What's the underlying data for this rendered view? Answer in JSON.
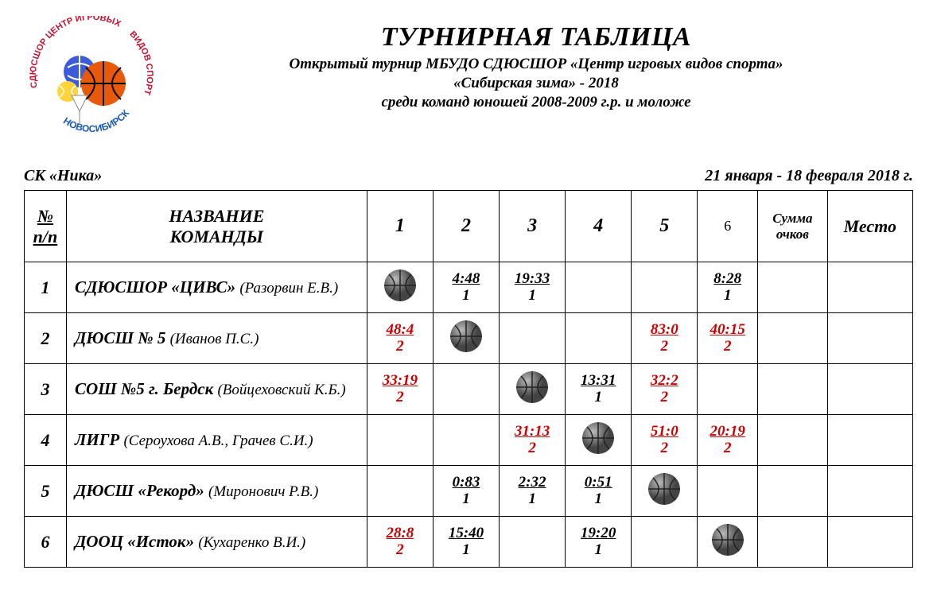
{
  "logo": {
    "arc_top": "СДЮСШОР ЦЕНТР ИГРОВЫХ",
    "arc_side": "ВИДОВ СПОРТА",
    "city": "НОВОСИБИРСК",
    "arc_color": "#c8102e",
    "city_color": "#1a5bb5"
  },
  "header": {
    "title": "ТУРНИРНАЯ ТАБЛИЦА",
    "line1": "Открытый турнир МБУДО СДЮСШОР «Центр игровых видов спорта»",
    "line2": "«Сибирская зима» - 2018",
    "line3": "среди команд юношей 2008-2009 г.р. и моложе"
  },
  "meta": {
    "venue": "СК «Ника»",
    "dates": "21 января - 18 февраля 2018 г."
  },
  "columns": {
    "num_top": "№",
    "num_bot": "п/п",
    "name_top": "НАЗВАНИЕ",
    "name_bot": "КОМАНДЫ",
    "r1": "1",
    "r2": "2",
    "r3": "3",
    "r4": "4",
    "r5": "5",
    "r6": "6",
    "sum_top": "Сумма",
    "sum_bot": "очков",
    "place": "Место"
  },
  "teams": [
    {
      "num": "1",
      "name": "СДЮСШОР «ЦИВС»",
      "coach": "(Разорвин Е.В.)",
      "cells": [
        {
          "diag": true
        },
        {
          "score": "4:48",
          "pts": "1",
          "win": false
        },
        {
          "score": "19:33",
          "pts": "1",
          "win": false
        },
        {},
        {},
        {
          "score": "8:28",
          "pts": "1",
          "win": false
        }
      ]
    },
    {
      "num": "2",
      "name": "ДЮСШ № 5",
      "coach": "(Иванов П.С.)",
      "cells": [
        {
          "score": "48:4",
          "pts": "2",
          "win": true
        },
        {
          "diag": true
        },
        {},
        {},
        {
          "score": "83:0",
          "pts": "2",
          "win": true
        },
        {
          "score": "40:15",
          "pts": "2",
          "win": true
        }
      ]
    },
    {
      "num": "3",
      "name": "СОШ №5 г. Бердск",
      "coach": "(Войцеховский К.Б.)",
      "cells": [
        {
          "score": "33:19",
          "pts": "2",
          "win": true
        },
        {},
        {
          "diag": true
        },
        {
          "score": "13:31",
          "pts": "1",
          "win": false
        },
        {
          "score": "32:2",
          "pts": "2",
          "win": true
        },
        {}
      ]
    },
    {
      "num": "4",
      "name": "ЛИГР",
      "coach": "(Сероухова А.В., Грачев С.И.)",
      "cells": [
        {},
        {},
        {
          "score": "31:13",
          "pts": "2",
          "win": true
        },
        {
          "diag": true
        },
        {
          "score": "51:0",
          "pts": "2",
          "win": true
        },
        {
          "score": "20:19",
          "pts": "2",
          "win": true
        }
      ]
    },
    {
      "num": "5",
      "name": "ДЮСШ «Рекорд»",
      "coach": "(Миронович Р.В.)",
      "cells": [
        {},
        {
          "score": "0:83",
          "pts": "1",
          "win": false
        },
        {
          "score": "2:32",
          "pts": "1",
          "win": false
        },
        {
          "score": "0:51",
          "pts": "1",
          "win": false
        },
        {
          "diag": true
        },
        {}
      ]
    },
    {
      "num": "6",
      "name": "ДООЦ «Исток»",
      "coach": "(Кухаренко В.И.)",
      "cells": [
        {
          "score": "28:8",
          "pts": "2",
          "win": true
        },
        {
          "score": "15:40",
          "pts": "1",
          "win": false
        },
        {},
        {
          "score": "19:20",
          "pts": "1",
          "win": false
        },
        {},
        {
          "diag": true
        }
      ]
    }
  ],
  "colors": {
    "win": "#cc0000",
    "text": "#000000",
    "border": "#000000",
    "background": "#ffffff"
  }
}
